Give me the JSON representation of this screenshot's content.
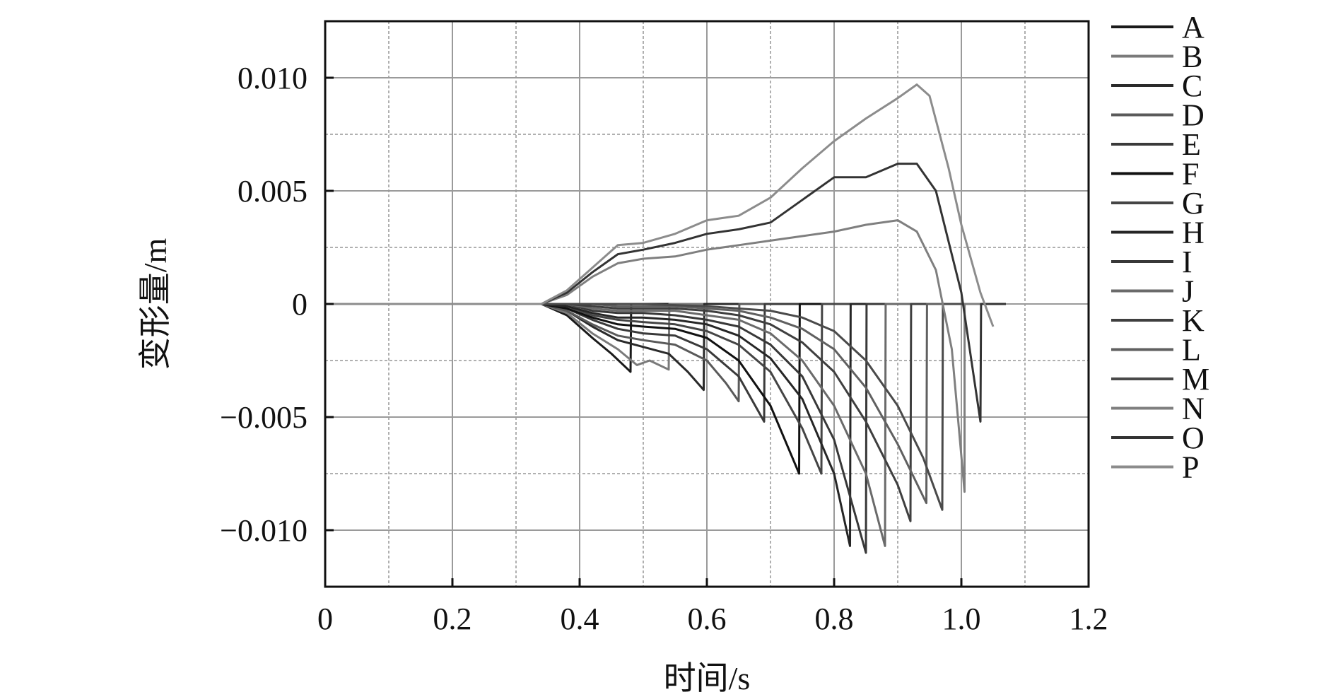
{
  "chart_data": {
    "type": "line",
    "title": "",
    "xlabel": "时间/s",
    "ylabel": "变形量/m",
    "xlim": [
      0,
      1.2
    ],
    "ylim": [
      -0.0125,
      0.0125
    ],
    "x_ticks": [
      0,
      0.2,
      0.4,
      0.6,
      0.8,
      1.0,
      1.2
    ],
    "x_tick_labels": [
      "0",
      "0.2",
      "0.4",
      "0.6",
      "0.8",
      "1.0",
      "1.2"
    ],
    "y_ticks": [
      0.01,
      0.005,
      0,
      -0.005,
      -0.01
    ],
    "y_tick_labels": [
      "0.010",
      "0.005",
      "0",
      "−0.005",
      "−0.010"
    ],
    "grid": true,
    "legend_position": "right",
    "series_colors": [
      "#1a1a1a",
      "#7a7a7a",
      "#2a2a2a",
      "#5a5a5a",
      "#3a3a3a",
      "#111111",
      "#454545",
      "#262626",
      "#383838",
      "#6a6a6a",
      "#3f3f3f",
      "#606060",
      "#4a4a4a",
      "#7f7f7f",
      "#333333",
      "#8c8c8c"
    ],
    "series": [
      {
        "name": "A",
        "x": [
          0,
          0.34,
          0.38,
          0.42,
          0.45,
          0.48,
          0.481,
          0.5,
          0.55,
          0.6,
          0.65,
          0.7,
          0.75,
          0.8,
          0.85,
          0.9,
          0.95,
          1.0,
          1.07
        ],
        "y": [
          0,
          0,
          -0.0005,
          -0.0015,
          -0.0022,
          -0.003,
          0,
          0,
          0,
          0,
          0,
          0,
          0,
          0,
          0,
          0,
          0,
          0,
          0
        ]
      },
      {
        "name": "B",
        "x": [
          0,
          0.34,
          0.38,
          0.42,
          0.46,
          0.49,
          0.51,
          0.54,
          0.541,
          0.6,
          0.7,
          0.8,
          0.9,
          1.0,
          1.07
        ],
        "y": [
          0,
          0,
          -0.0004,
          -0.0013,
          -0.002,
          -0.0027,
          -0.0025,
          -0.0029,
          0,
          0,
          0,
          0,
          0,
          0,
          0
        ],
        "_": ""
      },
      {
        "name": "C",
        "x": [
          0,
          0.34,
          0.38,
          0.42,
          0.46,
          0.5,
          0.54,
          0.57,
          0.595,
          0.596,
          0.7,
          0.8,
          0.9,
          1.0,
          1.07
        ],
        "y": [
          0,
          0,
          -0.0003,
          -0.001,
          -0.0016,
          -0.0019,
          -0.0022,
          -0.003,
          -0.0038,
          0,
          0,
          0,
          0,
          0,
          0
        ]
      },
      {
        "name": "D",
        "x": [
          0,
          0.34,
          0.38,
          0.42,
          0.46,
          0.5,
          0.55,
          0.6,
          0.63,
          0.65,
          0.651,
          0.75,
          0.85,
          0.95,
          1.07
        ],
        "y": [
          0,
          0,
          -0.0003,
          -0.0009,
          -0.0014,
          -0.0016,
          -0.0018,
          -0.0025,
          -0.0035,
          -0.0043,
          0,
          0,
          0,
          0,
          0
        ]
      },
      {
        "name": "E",
        "x": [
          0,
          0.34,
          0.38,
          0.42,
          0.46,
          0.5,
          0.55,
          0.6,
          0.65,
          0.69,
          0.691,
          0.8,
          0.9,
          1.0,
          1.07
        ],
        "y": [
          0,
          0,
          -0.0002,
          -0.0007,
          -0.0011,
          -0.0013,
          -0.0014,
          -0.002,
          -0.0032,
          -0.0052,
          0,
          0,
          0,
          0,
          0
        ]
      },
      {
        "name": "F",
        "x": [
          0,
          0.34,
          0.38,
          0.42,
          0.46,
          0.5,
          0.55,
          0.6,
          0.65,
          0.7,
          0.745,
          0.746,
          0.85,
          0.95,
          1.07
        ],
        "y": [
          0,
          0,
          -0.0002,
          -0.0006,
          -0.0009,
          -0.001,
          -0.0011,
          -0.0015,
          -0.0025,
          -0.0045,
          -0.0075,
          0,
          0,
          0,
          0
        ]
      },
      {
        "name": "G",
        "x": [
          0,
          0.34,
          0.38,
          0.42,
          0.46,
          0.5,
          0.55,
          0.6,
          0.65,
          0.7,
          0.75,
          0.78,
          0.781,
          0.9,
          1.07
        ],
        "y": [
          0,
          0,
          -0.0001,
          -0.0005,
          -0.0007,
          -0.0008,
          -0.0009,
          -0.0012,
          -0.0018,
          -0.003,
          -0.0055,
          -0.0075,
          0,
          0,
          0
        ]
      },
      {
        "name": "H",
        "x": [
          0,
          0.34,
          0.38,
          0.42,
          0.46,
          0.5,
          0.55,
          0.6,
          0.65,
          0.7,
          0.75,
          0.8,
          0.825,
          0.826,
          0.95,
          1.07
        ],
        "y": [
          0,
          0,
          -0.0001,
          -0.0004,
          -0.0006,
          -0.0006,
          -0.0007,
          -0.0009,
          -0.0014,
          -0.0024,
          -0.0042,
          -0.0075,
          -0.0107,
          0,
          0,
          0
        ]
      },
      {
        "name": "I",
        "x": [
          0,
          0.34,
          0.38,
          0.42,
          0.46,
          0.5,
          0.55,
          0.6,
          0.65,
          0.7,
          0.75,
          0.8,
          0.85,
          0.851,
          0.95,
          1.07
        ],
        "y": [
          0,
          0,
          0,
          -0.0003,
          -0.0004,
          -0.0004,
          -0.0005,
          -0.0007,
          -0.001,
          -0.0018,
          -0.0032,
          -0.006,
          -0.011,
          0,
          0,
          0
        ]
      },
      {
        "name": "J",
        "x": [
          0,
          0.34,
          0.38,
          0.42,
          0.46,
          0.5,
          0.55,
          0.6,
          0.65,
          0.7,
          0.75,
          0.8,
          0.85,
          0.88,
          0.881,
          1.0,
          1.07
        ],
        "y": [
          0,
          0,
          0,
          -0.0002,
          -0.0003,
          -0.0003,
          -0.0003,
          -0.0005,
          -0.0007,
          -0.0013,
          -0.0025,
          -0.0045,
          -0.0075,
          -0.0107,
          0,
          0,
          0
        ]
      },
      {
        "name": "K",
        "x": [
          0,
          0.34,
          0.38,
          0.42,
          0.46,
          0.5,
          0.55,
          0.6,
          0.65,
          0.7,
          0.75,
          0.8,
          0.85,
          0.9,
          0.92,
          0.921,
          1.07
        ],
        "y": [
          0,
          0,
          0,
          -0.0001,
          -0.0002,
          -0.0002,
          -0.0002,
          -0.0003,
          -0.0005,
          -0.0009,
          -0.0017,
          -0.003,
          -0.0052,
          -0.008,
          -0.0096,
          0,
          0
        ]
      },
      {
        "name": "L",
        "x": [
          0,
          0.34,
          0.38,
          0.42,
          0.46,
          0.5,
          0.55,
          0.6,
          0.65,
          0.7,
          0.75,
          0.8,
          0.85,
          0.9,
          0.945,
          0.946,
          1.07
        ],
        "y": [
          0,
          0,
          0,
          0,
          -0.0001,
          -0.0001,
          -0.0001,
          -0.0002,
          -0.0003,
          -0.0006,
          -0.0011,
          -0.002,
          -0.0037,
          -0.0062,
          -0.0088,
          0,
          0
        ]
      },
      {
        "name": "M",
        "x": [
          0,
          0.34,
          0.4,
          0.5,
          0.6,
          0.7,
          0.75,
          0.8,
          0.85,
          0.9,
          0.94,
          0.97,
          0.971,
          1.07
        ],
        "y": [
          0,
          0,
          0,
          0,
          -0.0001,
          -0.0003,
          -0.0006,
          -0.0012,
          -0.0025,
          -0.0045,
          -0.0068,
          -0.0091,
          0,
          0
        ]
      },
      {
        "name": "N",
        "x": [
          0,
          0.34,
          0.38,
          0.42,
          0.46,
          0.5,
          0.55,
          0.6,
          0.65,
          0.7,
          0.75,
          0.8,
          0.85,
          0.9,
          0.93,
          0.96,
          0.985,
          1.005,
          1.0051,
          1.07
        ],
        "y": [
          0,
          0,
          0.0004,
          0.0012,
          0.0018,
          0.002,
          0.0021,
          0.0024,
          0.0026,
          0.0028,
          0.003,
          0.0032,
          0.0035,
          0.0037,
          0.0032,
          0.0015,
          -0.002,
          -0.0083,
          0,
          0
        ]
      },
      {
        "name": "O",
        "x": [
          0,
          0.34,
          0.38,
          0.42,
          0.46,
          0.5,
          0.55,
          0.6,
          0.65,
          0.7,
          0.75,
          0.8,
          0.85,
          0.9,
          0.93,
          0.96,
          1.0,
          1.03,
          1.031,
          1.07
        ],
        "y": [
          0,
          0,
          0.0005,
          0.0014,
          0.0022,
          0.0024,
          0.0027,
          0.0031,
          0.0033,
          0.0036,
          0.0046,
          0.0056,
          0.0056,
          0.0062,
          0.0062,
          0.005,
          0.0005,
          -0.0052,
          0,
          0
        ]
      },
      {
        "name": "P",
        "x": [
          0,
          0.34,
          0.38,
          0.42,
          0.46,
          0.5,
          0.55,
          0.6,
          0.65,
          0.7,
          0.75,
          0.8,
          0.85,
          0.9,
          0.93,
          0.95,
          0.98,
          1.0,
          1.03,
          1.05
        ],
        "y": [
          0,
          0,
          0.0006,
          0.0016,
          0.0026,
          0.0027,
          0.0031,
          0.0037,
          0.0039,
          0.0047,
          0.006,
          0.0072,
          0.0082,
          0.0091,
          0.0097,
          0.0092,
          0.006,
          0.0035,
          0.0005,
          -0.001
        ]
      }
    ]
  }
}
